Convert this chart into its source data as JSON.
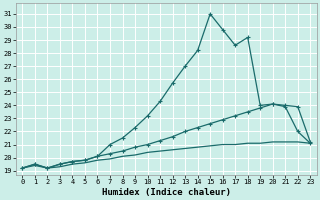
{
  "title": "",
  "xlabel": "Humidex (Indice chaleur)",
  "background_color": "#cceee8",
  "grid_color": "#ffffff",
  "line_color": "#1a6b6b",
  "x_ticks": [
    0,
    1,
    2,
    3,
    4,
    5,
    6,
    7,
    8,
    9,
    10,
    11,
    12,
    13,
    14,
    15,
    16,
    17,
    18,
    19,
    20,
    21,
    22,
    23
  ],
  "y_ticks": [
    19,
    20,
    21,
    22,
    23,
    24,
    25,
    26,
    27,
    28,
    29,
    30,
    31
  ],
  "ylim": [
    18.7,
    31.8
  ],
  "xlim": [
    -0.5,
    23.5
  ],
  "line1_x": [
    0,
    1,
    2,
    3,
    4,
    5,
    6,
    7,
    8,
    9,
    10,
    11,
    12,
    13,
    14,
    15,
    16,
    17,
    18,
    19,
    20,
    21,
    22,
    23
  ],
  "line1_y": [
    19.2,
    19.5,
    19.2,
    19.5,
    19.7,
    19.8,
    20.1,
    21.0,
    21.5,
    22.3,
    23.2,
    24.3,
    25.7,
    27.0,
    28.2,
    31.0,
    29.8,
    28.6,
    29.2,
    24.0,
    24.1,
    23.9,
    22.0,
    21.1
  ],
  "line2_x": [
    0,
    1,
    2,
    3,
    4,
    5,
    6,
    7,
    8,
    9,
    10,
    11,
    12,
    13,
    14,
    15,
    16,
    17,
    18,
    19,
    20,
    21,
    22,
    23
  ],
  "line2_y": [
    19.2,
    19.5,
    19.2,
    19.5,
    19.7,
    19.8,
    20.1,
    20.3,
    20.5,
    20.8,
    21.0,
    21.3,
    21.6,
    22.0,
    22.3,
    22.6,
    22.9,
    23.2,
    23.5,
    23.8,
    24.1,
    24.0,
    23.9,
    21.2
  ],
  "line3_x": [
    0,
    1,
    2,
    3,
    4,
    5,
    6,
    7,
    8,
    9,
    10,
    11,
    12,
    13,
    14,
    15,
    16,
    17,
    18,
    19,
    20,
    21,
    22,
    23
  ],
  "line3_y": [
    19.2,
    19.4,
    19.2,
    19.3,
    19.5,
    19.6,
    19.8,
    19.9,
    20.1,
    20.2,
    20.4,
    20.5,
    20.6,
    20.7,
    20.8,
    20.9,
    21.0,
    21.0,
    21.1,
    21.1,
    21.2,
    21.2,
    21.2,
    21.1
  ],
  "marker": "+",
  "marker_size": 3.5,
  "linewidth": 0.9,
  "tick_fontsize": 5,
  "xlabel_fontsize": 6.5
}
